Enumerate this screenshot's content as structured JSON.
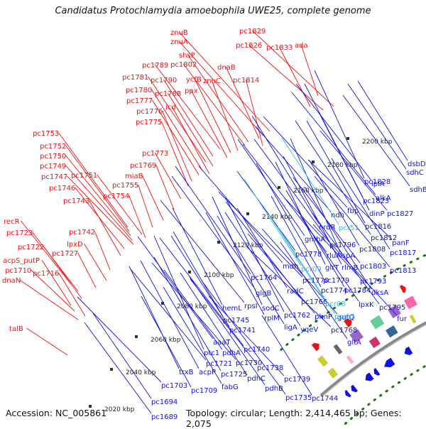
{
  "title": "Candidatus Protochlamydia amoebophila UWE25, complete genome",
  "footer": {
    "accession": "Accession: NC_005861",
    "summary": "Topology: circular; Length: 2,414,465 bp; Genes: 2,075"
  },
  "colors": {
    "forward": "#ee1111",
    "reverse": "#1111dd",
    "rna": "#33bbdd",
    "backbone": "#888888",
    "gc_dots": "#117711"
  },
  "kbp_ticks": [
    "2020 kbp",
    "2040 kbp",
    "2060 kbp",
    "2080 kbp",
    "2100 kbp",
    "2120 kbp",
    "2140 kbp",
    "2160 kbp",
    "2180 kbp",
    "2200 kbp"
  ],
  "labels_forward": [
    "pc1829",
    "pc1826",
    "pc1833",
    "ada",
    "znuB",
    "znuA",
    "shsP",
    "pc1802",
    "dnaB",
    "pc1789",
    "ycfB",
    "znuC",
    "pc1814",
    "pc1790",
    "ppx",
    "pc1781",
    "pc1788",
    "pc1780",
    "pc1777",
    "icd",
    "pc1776",
    "pc1775",
    "pc1753",
    "pc1752",
    "pc1773",
    "pc1750",
    "pc1749",
    "pc1769",
    "pc1747",
    "pc1751",
    "miaB",
    "pc1755",
    "pc1746",
    "pc1754",
    "pc1743",
    "recR",
    "pc1742",
    "pc1723",
    "lpxD",
    "pc1722",
    "pc1727",
    "acpS_putP",
    "pc1710",
    "pc1716",
    "dnaN",
    "talB"
  ],
  "labels_reverse": [
    "dsbD",
    "sdhC",
    "sdhB",
    "lplA",
    "alkA",
    "pc1828",
    "pc1823",
    "pc1827",
    "ndh",
    "fbp",
    "dinP",
    "pc1816",
    "nrdR",
    "pc1812",
    "panF",
    "pc1808",
    "pc1817",
    "gmhA",
    "pc1796",
    "rluA",
    "lspA",
    "pc1778",
    "pc1803",
    "pc1813",
    "mdh",
    "glrT",
    "rlmB",
    "pc1779",
    "pc1793",
    "pc1770",
    "pc1774",
    "pc1784",
    "dksA",
    "pc1764",
    "glgB",
    "radC",
    "lpxK",
    "pc1795",
    "pc1766",
    "rpsI",
    "sodC",
    "pc1762",
    "phnP",
    "gutQ",
    "fur",
    "hemL",
    "rplM",
    "ligA",
    "yqeV",
    "pc1768",
    "pc1745",
    "pc1741",
    "gltA",
    "aaaT",
    "pc1740",
    "ptc1",
    "pdhA",
    "pc1738",
    "pc1721",
    "pc1730",
    "trxB",
    "acpP",
    "pc1725",
    "pc1739",
    "pc1703",
    "pc1709",
    "fabG",
    "pdhC",
    "pdhB",
    "pc1735",
    "pc1744",
    "pc1694",
    "pc1689"
  ],
  "labels_rna": [
    "pcr51",
    "pcr09",
    "pcr08",
    "pcr07"
  ]
}
